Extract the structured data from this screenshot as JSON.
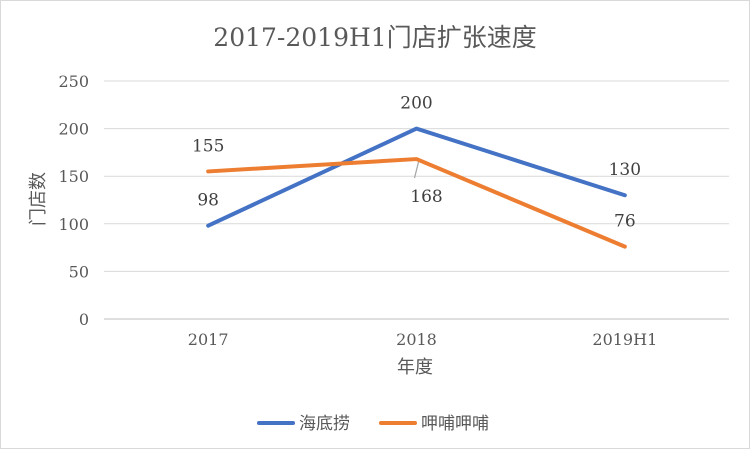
{
  "chart_data": {
    "type": "line",
    "title": "2017-2019H1门店扩张速度",
    "xlabel": "年度",
    "ylabel": "门店数",
    "categories": [
      "2017",
      "2018",
      "2019H1"
    ],
    "ylim": [
      0,
      250
    ],
    "yticks": [
      0,
      50,
      100,
      150,
      200,
      250
    ],
    "grid": true,
    "legend_position": "bottom",
    "series": [
      {
        "name": "海底捞",
        "color": "#4472C4",
        "values": [
          98,
          200,
          130
        ]
      },
      {
        "name": "呷哺呷哺",
        "color": "#ED7D31",
        "values": [
          155,
          168,
          76
        ]
      }
    ]
  }
}
